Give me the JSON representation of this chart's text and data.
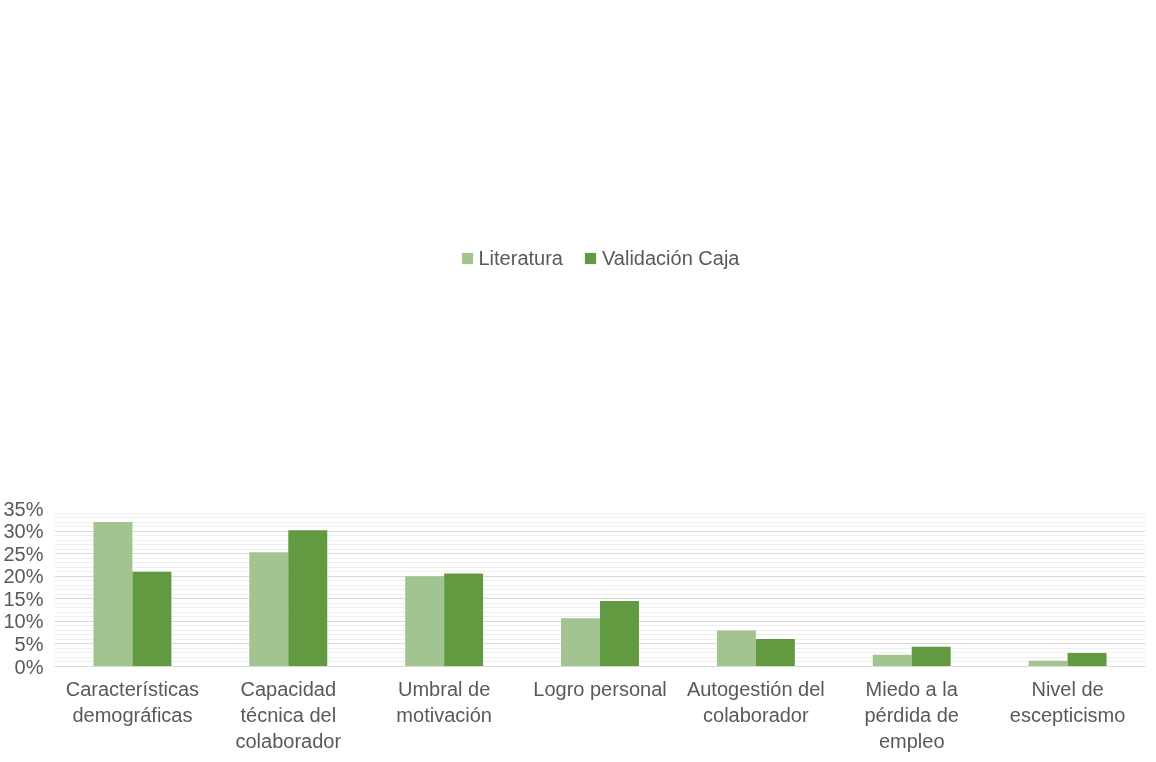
{
  "chart_data": {
    "type": "bar",
    "categories": [
      "Características demográficas",
      "Capacidad técnica del colaborador",
      "Umbral de motivación",
      "Logro personal",
      "Autogestión del colaborador",
      "Miedo a la pérdida de empleo",
      "Nivel de escepticismo"
    ],
    "series": [
      {
        "name": "Literatura",
        "color": "#a2c490",
        "values": [
          32.0,
          25.3,
          20.0,
          10.7,
          8.0,
          2.6,
          1.3
        ]
      },
      {
        "name": "Validación Caja",
        "color": "#629a41",
        "values": [
          21.0,
          30.2,
          20.6,
          14.5,
          6.1,
          4.4,
          3.0
        ]
      }
    ],
    "ylim": [
      0,
      35
    ],
    "yticks": [
      {
        "value": 0,
        "label": "0%"
      },
      {
        "value": 5,
        "label": "5%"
      },
      {
        "value": 10,
        "label": "10%"
      },
      {
        "value": 15,
        "label": "15%"
      },
      {
        "value": 20,
        "label": "20%"
      },
      {
        "value": 25,
        "label": "25%"
      },
      {
        "value": 30,
        "label": "30%"
      },
      {
        "value": 35,
        "label": "35%"
      }
    ],
    "grid": "y",
    "legend": "top"
  }
}
